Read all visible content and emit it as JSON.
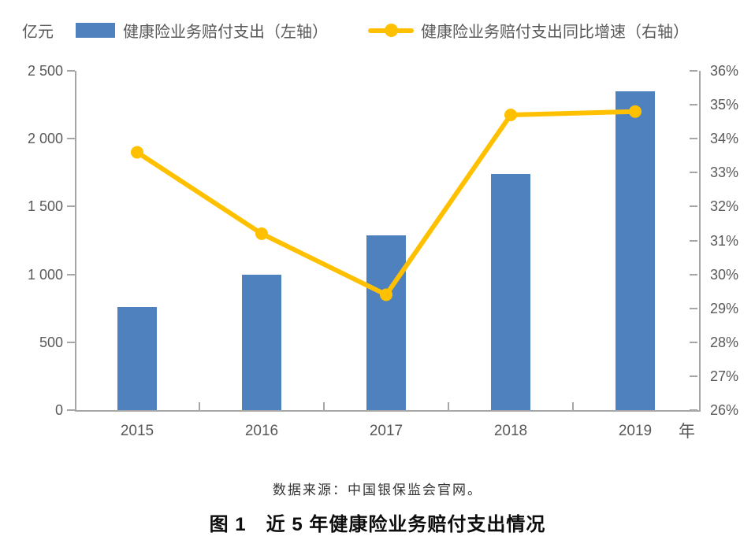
{
  "figure": {
    "unit_label": "亿元",
    "x_axis_unit": "年",
    "source_note": "数据来源：中国银保监会官网。",
    "caption": "图 1　近 5 年健康险业务赔付支出情况"
  },
  "legend": [
    {
      "label": "健康险业务赔付支出（左轴）",
      "marker": "bar-swatch"
    },
    {
      "label": "健康险业务赔付支出同比增速（右轴）",
      "marker": "line-dot"
    }
  ],
  "colors": {
    "bar": "#4E81BD",
    "line": "#FFC000",
    "axis_line": "#A6A6A6",
    "tick_text": "#595959",
    "caption_text": "#0d0d0d",
    "source_text": "#333333"
  },
  "chart_data": {
    "type": "bar",
    "subtype": "bar+line dual axis",
    "title": "图 1　近 5 年健康险业务赔付支出情况",
    "categories": [
      "2015",
      "2016",
      "2017",
      "2018",
      "2019"
    ],
    "series": [
      {
        "name": "健康险业务赔付支出（左轴）",
        "type": "bar",
        "axis": "left",
        "unit": "亿元",
        "values": [
          760,
          1000,
          1290,
          1740,
          2350
        ]
      },
      {
        "name": "健康险业务赔付支出同比增速（右轴）",
        "type": "line",
        "axis": "right",
        "unit": "%",
        "values": [
          33.6,
          31.2,
          29.4,
          34.7,
          34.8
        ]
      }
    ],
    "left_axis": {
      "label": "亿元",
      "min": 0,
      "max": 2500,
      "tick_step": 500,
      "tick_labels": [
        "0",
        "500",
        "1 000",
        "1 500",
        "2 000",
        "2 500"
      ]
    },
    "right_axis": {
      "label": "%",
      "min": 26,
      "max": 36,
      "tick_step": 1,
      "tick_labels": [
        "26%",
        "27%",
        "28%",
        "29%",
        "30%",
        "31%",
        "32%",
        "33%",
        "34%",
        "35%",
        "36%"
      ]
    },
    "x_axis": {
      "label": "年"
    },
    "grid": false,
    "legend_position": "top"
  }
}
